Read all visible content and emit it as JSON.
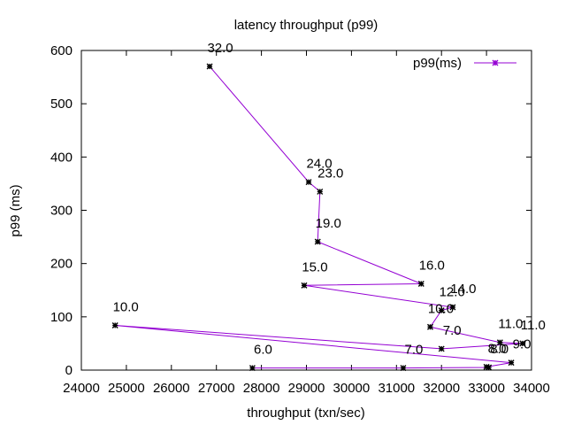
{
  "chart_data": {
    "type": "line",
    "title": "latency throughput (p99)",
    "xlabel": "throughput (txn/sec)",
    "ylabel": "p99 (ms)",
    "xlim": [
      24000,
      34000
    ],
    "ylim": [
      0,
      600
    ],
    "xticks": [
      "24000",
      "25000",
      "26000",
      "27000",
      "28000",
      "29000",
      "30000",
      "31000",
      "32000",
      "33000",
      "34000"
    ],
    "yticks": [
      "0",
      "100",
      "200",
      "300",
      "400",
      "500",
      "600"
    ],
    "grid": false,
    "legend": {
      "position": "top-right",
      "entries": [
        "p99(ms)"
      ]
    },
    "series": [
      {
        "name": "p99(ms)",
        "color": "#9400d3",
        "marker_color": "#000000",
        "points": [
          {
            "x": 26850,
            "y": 570,
            "label": "32.0"
          },
          {
            "x": 29050,
            "y": 353,
            "label": "24.0"
          },
          {
            "x": 29300,
            "y": 335,
            "label": "23.0"
          },
          {
            "x": 29250,
            "y": 241,
            "label": "19.0"
          },
          {
            "x": 31550,
            "y": 162,
            "label": "16.0"
          },
          {
            "x": 28950,
            "y": 159,
            "label": "15.0"
          },
          {
            "x": 32250,
            "y": 118,
            "label": "14.0"
          },
          {
            "x": 32000,
            "y": 112,
            "label": "12.0"
          },
          {
            "x": 31750,
            "y": 81,
            "label": "10.0"
          },
          {
            "x": 33300,
            "y": 52,
            "label": "11.0"
          },
          {
            "x": 33800,
            "y": 50,
            "label": "11.0"
          },
          {
            "x": 32000,
            "y": 40,
            "label": "7.0"
          },
          {
            "x": 24750,
            "y": 84,
            "label": "10.0"
          },
          {
            "x": 33550,
            "y": 14,
            "label": "9.0"
          },
          {
            "x": 33000,
            "y": 6,
            "label": "8.0"
          },
          {
            "x": 33050,
            "y": 5,
            "label": "8.0"
          },
          {
            "x": 31150,
            "y": 4,
            "label": "7.0"
          },
          {
            "x": 27800,
            "y": 4,
            "label": "6.0"
          }
        ]
      }
    ]
  }
}
